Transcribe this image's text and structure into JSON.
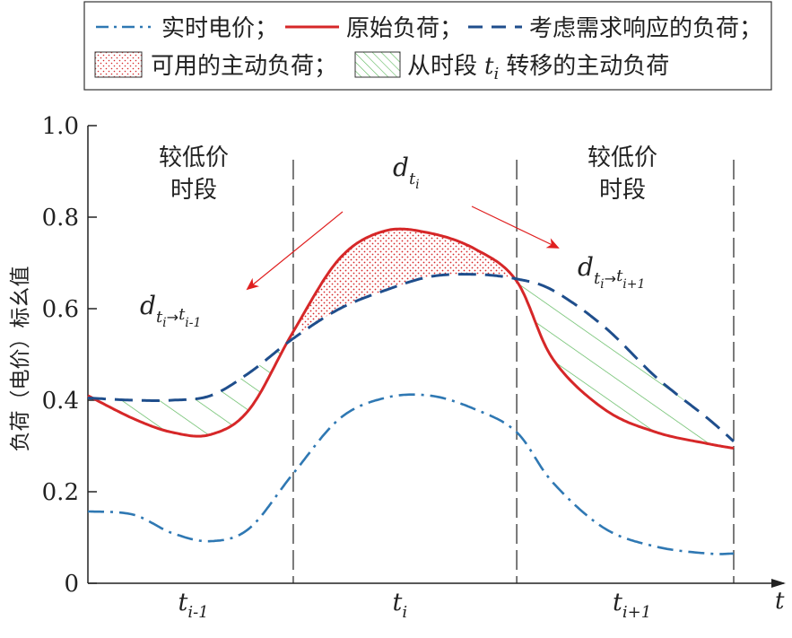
{
  "legend": {
    "items": [
      {
        "key": "price",
        "label": "实时电价；",
        "color": "#2f78b3",
        "style": "dashdot"
      },
      {
        "key": "original",
        "label": "原始负荷；",
        "color": "#d62728",
        "style": "solid"
      },
      {
        "key": "dr",
        "label": "考虑需求响应的负荷；",
        "color": "#1f4e8c",
        "style": "dashed"
      },
      {
        "key": "available",
        "label": "可用的主动负荷；",
        "color": "#d62728",
        "style": "dotted-fill"
      },
      {
        "key": "shifted",
        "label": "从时段",
        "sub_label": "转移的主动负荷",
        "color": "#5cb85c",
        "style": "hatch-fill"
      }
    ]
  },
  "chart_data": {
    "type": "line",
    "ylabel": "负荷（电价）标幺值",
    "xlabel": "t",
    "ylim": [
      0,
      1.0
    ],
    "yticks": [
      "0",
      "0.2",
      "0.4",
      "0.6",
      "0.8",
      "1.0"
    ],
    "xlim": [
      0,
      1.0
    ],
    "xticks": [
      {
        "label": "t",
        "sub": "i-1"
      },
      {
        "label": "t",
        "sub": "i"
      },
      {
        "label": "t",
        "sub": "i+1"
      }
    ],
    "period_bounds": [
      0.318,
      0.664,
      1.0
    ],
    "series": [
      {
        "key": "price",
        "color": "#2f78b3",
        "x": [
          0,
          0.07,
          0.13,
          0.19,
          0.25,
          0.318,
          0.39,
          0.46,
          0.53,
          0.6,
          0.664,
          0.72,
          0.8,
          0.88,
          0.96,
          1.0
        ],
        "y": [
          0.157,
          0.15,
          0.11,
          0.092,
          0.12,
          0.24,
          0.36,
          0.405,
          0.41,
          0.38,
          0.33,
          0.22,
          0.12,
          0.08,
          0.065,
          0.065
        ]
      },
      {
        "key": "original",
        "color": "#d62728",
        "x": [
          0,
          0.07,
          0.13,
          0.19,
          0.25,
          0.318,
          0.39,
          0.46,
          0.53,
          0.6,
          0.664,
          0.72,
          0.8,
          0.88,
          0.96,
          1.0
        ],
        "y": [
          0.41,
          0.36,
          0.33,
          0.325,
          0.38,
          0.55,
          0.71,
          0.77,
          0.765,
          0.73,
          0.66,
          0.49,
          0.38,
          0.33,
          0.305,
          0.295
        ]
      },
      {
        "key": "dr",
        "color": "#1f4e8c",
        "x": [
          0,
          0.07,
          0.13,
          0.19,
          0.25,
          0.318,
          0.39,
          0.46,
          0.53,
          0.6,
          0.664,
          0.72,
          0.8,
          0.88,
          0.96,
          1.0
        ],
        "y": [
          0.405,
          0.4,
          0.4,
          0.41,
          0.46,
          0.535,
          0.6,
          0.64,
          0.67,
          0.675,
          0.665,
          0.64,
          0.56,
          0.45,
          0.36,
          0.31
        ]
      }
    ],
    "annotations": [
      {
        "key": "left_region",
        "line1": "较低价",
        "line2": "时段"
      },
      {
        "key": "right_region",
        "line1": "较低价",
        "line2": "时段"
      },
      {
        "key": "d_ti",
        "text": "d",
        "sub": "t",
        "subsub": "i"
      },
      {
        "key": "d_left",
        "text": "d",
        "sub": "t",
        "subsub": "i",
        "arrow": "→",
        "sub2": "t",
        "subsub2": "i-1"
      },
      {
        "key": "d_right",
        "text": "d",
        "sub": "t",
        "subsub": "i",
        "arrow": "→",
        "sub2": "t",
        "subsub2": "i+1"
      }
    ]
  }
}
